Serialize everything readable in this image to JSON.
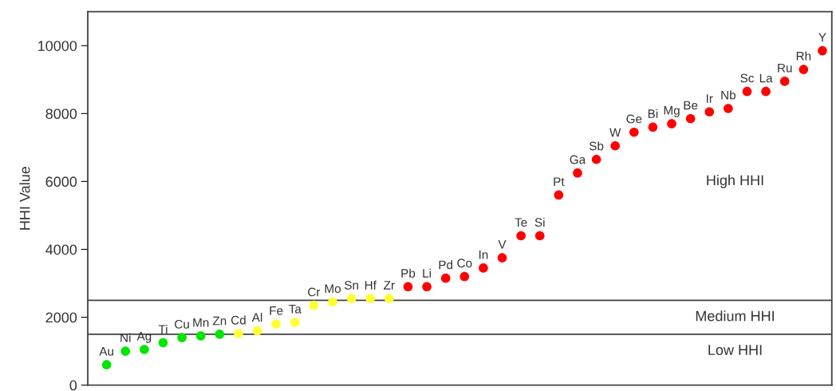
{
  "chart_data": {
    "type": "scatter",
    "ylabel": "HHI Value",
    "categories": [
      "Au",
      "Ni",
      "Ag",
      "Ti",
      "Cu",
      "Mn",
      "Zn",
      "Cd",
      "Al",
      "Fe",
      "Ta",
      "Cr",
      "Mo",
      "Sn",
      "Hf",
      "Zr",
      "Pb",
      "Li",
      "Pd",
      "Co",
      "In",
      "V",
      "Te",
      "Si",
      "Pt",
      "Ga",
      "Sb",
      "W",
      "Ge",
      "Bi",
      "Mg",
      "Be",
      "Ir",
      "Nb",
      "Sc",
      "La",
      "Ru",
      "Rh",
      "Y"
    ],
    "values": [
      600,
      1000,
      1050,
      1250,
      1400,
      1450,
      1500,
      1520,
      1600,
      1800,
      1850,
      2350,
      2450,
      2550,
      2550,
      2550,
      2900,
      2900,
      3150,
      3200,
      3450,
      3750,
      4400,
      4400,
      5600,
      6250,
      6650,
      7050,
      7450,
      7600,
      7700,
      7850,
      8050,
      8150,
      8650,
      8650,
      8950,
      9300,
      9850
    ],
    "colors": [
      "#00e600",
      "#00e600",
      "#00e600",
      "#00e600",
      "#00e600",
      "#00e600",
      "#00e600",
      "#ffff33",
      "#ffff33",
      "#ffff33",
      "#ffff33",
      "#ffff33",
      "#ffff33",
      "#ffff33",
      "#ffff33",
      "#ffff33",
      "#ff0000",
      "#ff0000",
      "#ff0000",
      "#ff0000",
      "#ff0000",
      "#ff0000",
      "#ff0000",
      "#ff0000",
      "#ff0000",
      "#ff0000",
      "#ff0000",
      "#ff0000",
      "#ff0000",
      "#ff0000",
      "#ff0000",
      "#ff0000",
      "#ff0000",
      "#ff0000",
      "#ff0000",
      "#ff0000",
      "#ff0000",
      "#ff0000",
      "#ff0000"
    ],
    "ylim": [
      0,
      11000
    ],
    "yticks": [
      0,
      2000,
      4000,
      6000,
      8000,
      10000
    ],
    "ref_lines": [
      {
        "axis": "y",
        "value": 2500,
        "color": "#404040"
      },
      {
        "axis": "y",
        "value": 1500,
        "color": "#404040"
      }
    ],
    "annotations": [
      "High HHI",
      "Medium HHI",
      "Low HHI"
    ],
    "tick_labels": "y",
    "marker": "circle",
    "grid": false,
    "legend": false
  }
}
